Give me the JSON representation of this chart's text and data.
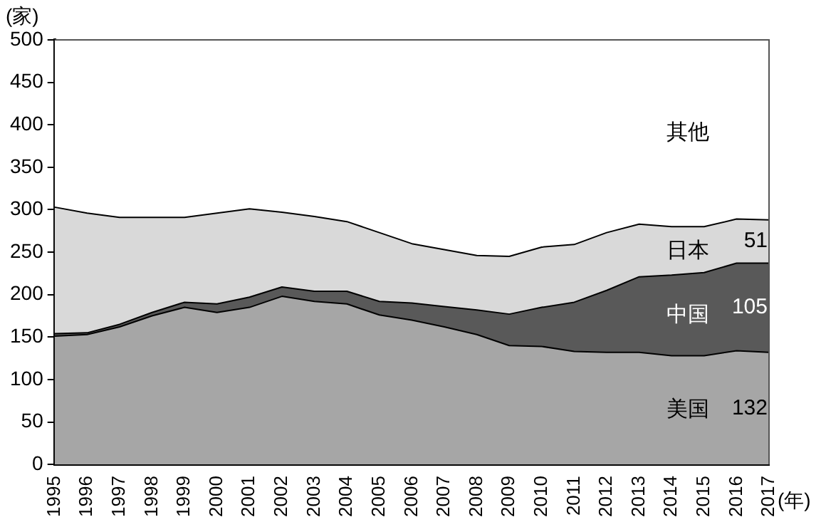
{
  "chart_data": {
    "type": "area",
    "stacked": true,
    "ylabel": "(家)",
    "xlabel": "(年)",
    "categories": [
      "1995",
      "1996",
      "1997",
      "1998",
      "1999",
      "2000",
      "2001",
      "2002",
      "2003",
      "2004",
      "2005",
      "2006",
      "2007",
      "2008",
      "2009",
      "2010",
      "2011",
      "2012",
      "2013",
      "2014",
      "2015",
      "2016",
      "2017"
    ],
    "series": [
      {
        "name": "美国",
        "color": "#a6a6a6",
        "values": [
          151,
          153,
          162,
          175,
          185,
          179,
          185,
          198,
          192,
          189,
          176,
          170,
          162,
          153,
          140,
          139,
          133,
          132,
          132,
          128,
          128,
          134,
          132
        ],
        "value_labels": [
          null,
          null,
          null,
          null,
          null,
          null,
          null,
          null,
          null,
          null,
          null,
          null,
          null,
          null,
          null,
          null,
          null,
          null,
          null,
          null,
          null,
          null,
          "132"
        ]
      },
      {
        "name": "中国",
        "color": "#595959",
        "values": [
          3,
          2,
          3,
          4,
          6,
          10,
          12,
          11,
          12,
          15,
          16,
          20,
          24,
          29,
          37,
          46,
          58,
          73,
          89,
          95,
          98,
          103,
          105
        ],
        "value_labels": [
          null,
          null,
          null,
          null,
          null,
          null,
          null,
          null,
          null,
          null,
          null,
          null,
          null,
          null,
          null,
          null,
          null,
          null,
          null,
          null,
          null,
          null,
          "105"
        ]
      },
      {
        "name": "日本",
        "color": "#d9d9d9",
        "values": [
          149,
          141,
          126,
          112,
          100,
          107,
          104,
          88,
          88,
          82,
          81,
          70,
          67,
          64,
          68,
          71,
          68,
          68,
          62,
          57,
          54,
          52,
          51
        ],
        "value_labels": [
          null,
          null,
          null,
          null,
          null,
          null,
          null,
          null,
          null,
          null,
          null,
          null,
          null,
          null,
          null,
          null,
          null,
          null,
          null,
          null,
          null,
          null,
          "51"
        ]
      },
      {
        "name": "其他",
        "color": "#ffffff",
        "values": [
          197,
          204,
          209,
          209,
          209,
          204,
          199,
          203,
          208,
          214,
          227,
          240,
          247,
          254,
          255,
          244,
          241,
          227,
          217,
          220,
          220,
          211,
          212
        ]
      }
    ],
    "ylim": [
      0,
      500
    ],
    "yticks": [
      0,
      50,
      100,
      150,
      200,
      250,
      300,
      350,
      400,
      450,
      500
    ],
    "grid": false,
    "legend": false
  }
}
